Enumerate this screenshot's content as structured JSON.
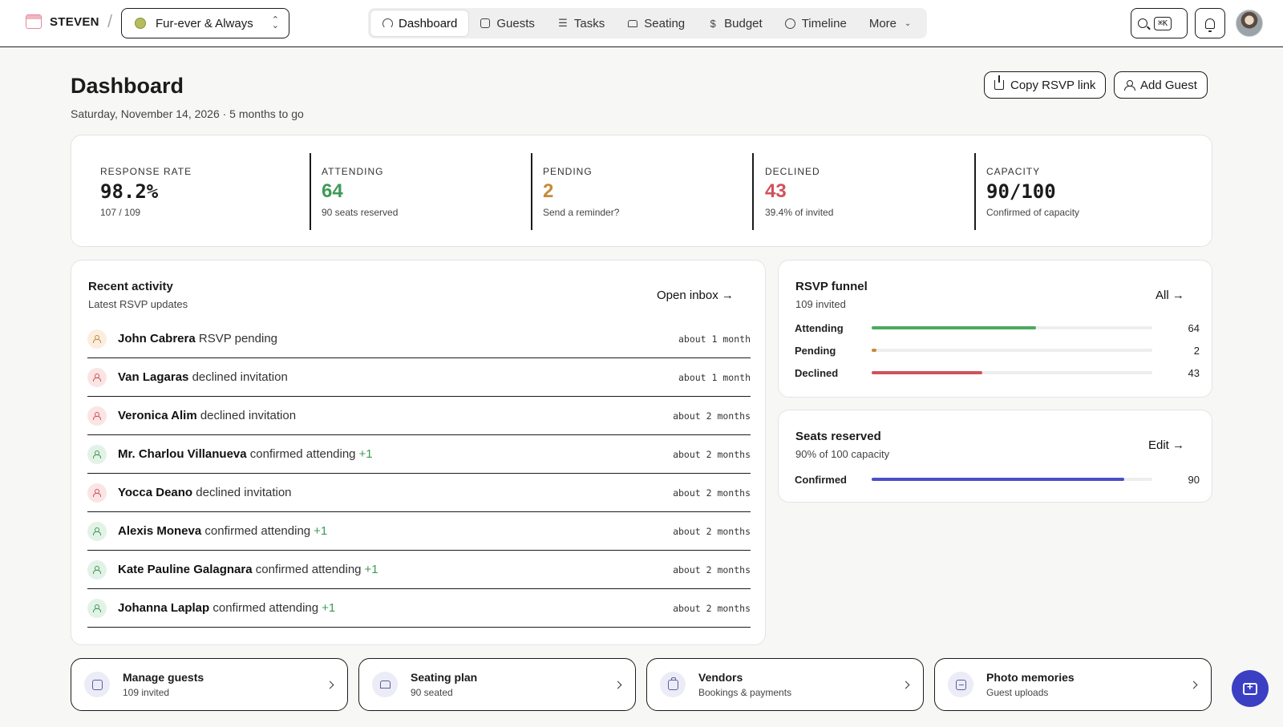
{
  "brand": {
    "name": "STEVEN"
  },
  "project": {
    "name": "Fur-ever & Always"
  },
  "nav": [
    {
      "label": "Dashboard",
      "icon": "gauge-icon",
      "active": true
    },
    {
      "label": "Guests",
      "icon": "contact-card-icon"
    },
    {
      "label": "Tasks",
      "icon": "checklist-icon"
    },
    {
      "label": "Seating",
      "icon": "sofa-icon"
    },
    {
      "label": "Budget",
      "icon": "dollar-icon"
    },
    {
      "label": "Timeline",
      "icon": "clock-icon"
    },
    {
      "label": "More",
      "icon": "chevron-down-icon"
    }
  ],
  "search": {
    "shortcut": "⌘K"
  },
  "header": {
    "title": "Dashboard",
    "subtitle": "Saturday, November 14, 2026 · 5 months to go",
    "copy_rsvp": "Copy RSVP link",
    "add_guest": "Add Guest"
  },
  "stats": [
    {
      "label": "RESPONSE RATE",
      "value": "98.2%",
      "sub": "107 / 109",
      "color": "#1b1b1b"
    },
    {
      "label": "ATTENDING",
      "value": "64",
      "sub": "90 seats reserved",
      "color": "#3e9a55"
    },
    {
      "label": "PENDING",
      "value": "2",
      "sub": "Send a reminder?",
      "color": "#c68a3c"
    },
    {
      "label": "DECLINED",
      "value": "43",
      "sub": "39.4% of invited",
      "color": "#d0525c"
    },
    {
      "label": "CAPACITY",
      "value": "90/100",
      "sub": "Confirmed of capacity",
      "color": "#1b1b1b"
    }
  ],
  "activity": {
    "title": "Recent activity",
    "subtitle": "Latest RSVP updates",
    "link": "Open inbox →",
    "items": [
      {
        "name": "John Cabrera",
        "action": "RSVP pending",
        "plus": "",
        "time": "about 1 month",
        "status": "pending"
      },
      {
        "name": "Van Lagaras",
        "action": "declined invitation",
        "plus": "",
        "time": "about 1 month",
        "status": "declined"
      },
      {
        "name": "Veronica Alim",
        "action": "declined invitation",
        "plus": "",
        "time": "about 2 months",
        "status": "declined"
      },
      {
        "name": "Mr. Charlou Villanueva",
        "action": "confirmed attending",
        "plus": "+1",
        "time": "about 2 months",
        "status": "confirmed"
      },
      {
        "name": "Yocca Deano",
        "action": "declined invitation",
        "plus": "",
        "time": "about 2 months",
        "status": "declined"
      },
      {
        "name": "Alexis Moneva",
        "action": "confirmed attending",
        "plus": "+1",
        "time": "about 2 months",
        "status": "confirmed"
      },
      {
        "name": "Kate Pauline Galagnara",
        "action": "confirmed attending",
        "plus": "+1",
        "time": "about 2 months",
        "status": "confirmed"
      },
      {
        "name": "Johanna Laplap",
        "action": "confirmed attending",
        "plus": "+1",
        "time": "about 2 months",
        "status": "confirmed"
      }
    ]
  },
  "funnel": {
    "title": "RSVP funnel",
    "subtitle": "109 invited",
    "link": "All →",
    "rows": [
      {
        "label": "Attending",
        "value": "64",
        "fraction": 0.587,
        "color": "#4caa5f"
      },
      {
        "label": "Pending",
        "value": "2",
        "fraction": 0.018,
        "color": "#c68a3c"
      },
      {
        "label": "Declined",
        "value": "43",
        "fraction": 0.394,
        "color": "#d0525c"
      }
    ]
  },
  "seats": {
    "title": "Seats reserved",
    "subtitle": "90% of 100 capacity",
    "link": "Edit →",
    "row": {
      "label": "Confirmed",
      "value": "90",
      "fraction": 0.9,
      "color": "#4a4fc8"
    }
  },
  "quick_links": [
    {
      "title": "Manage guests",
      "sub": "109 invited",
      "icon": "contact-card-icon"
    },
    {
      "title": "Seating plan",
      "sub": "90 seated",
      "icon": "sofa-icon"
    },
    {
      "title": "Vendors",
      "sub": "Bookings & payments",
      "icon": "briefcase-icon"
    },
    {
      "title": "Photo memories",
      "sub": "Guest uploads",
      "icon": "image-icon"
    }
  ]
}
